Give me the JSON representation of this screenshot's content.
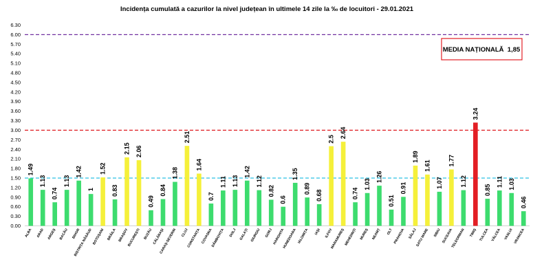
{
  "chart_data": {
    "type": "bar",
    "title": "Incidența cumulată a cazurilor la nivel județean în ultimele 14 zile la ‰ de locuitori - 29.01.2021",
    "ylim": [
      0,
      6.3
    ],
    "yticks": [
      0.0,
      0.3,
      0.6,
      0.9,
      1.2,
      1.5,
      1.8,
      2.1,
      2.4,
      2.7,
      3.0,
      3.3,
      3.6,
      3.9,
      4.2,
      4.5,
      4.8,
      5.1,
      5.4,
      5.7,
      6.0,
      6.3
    ],
    "ytick_labels": [
      "0.00",
      "0.30",
      "0.60",
      "0.90",
      "1.20",
      "1.50",
      "1.80",
      "2.10",
      "2.40",
      "2.70",
      "3.00",
      "3.30",
      "3.60",
      "3.90",
      "4.20",
      "4.50",
      "4.80",
      "5.10",
      "5.40",
      "5.70",
      "6.00",
      "6.30"
    ],
    "categories": [
      "ALBA",
      "ARAD",
      "ARGEȘ",
      "BACĂU",
      "BIHOR",
      "BISTRIȚA NĂSĂUD",
      "BOTOȘANI",
      "BRĂILA",
      "BRAȘOV",
      "BUCUREȘTI",
      "BUZĂU",
      "CĂLĂRAȘI",
      "CARAȘ-SEVERIN",
      "CLUJ",
      "CONSTANȚA",
      "COVASNA",
      "DÂMBOVIȚA",
      "DOLJ",
      "GALAȚI",
      "GIURGIU",
      "GORJ",
      "HARGHITA",
      "HUNEDOARA",
      "IALOMIȚA",
      "IAȘI",
      "ILFOV",
      "MARAMUREȘ",
      "MEHEDINȚI",
      "MUREȘ",
      "NEAMȚ",
      "OLT",
      "PRAHOVA",
      "SĂLAJ",
      "SATU MARE",
      "SIBIU",
      "SUCEAVA",
      "TELEORMAN",
      "TIMIȘ",
      "TULCEA",
      "VÂLCEA",
      "VASLUI",
      "VRANCEA"
    ],
    "values": [
      1.49,
      1.13,
      0.74,
      1.13,
      1.42,
      1,
      1.52,
      0.83,
      2.15,
      2.06,
      0.49,
      0.84,
      1.38,
      2.51,
      1.64,
      0.7,
      1.11,
      1.13,
      1.42,
      1.12,
      0.82,
      0.6,
      1.35,
      0.89,
      0.68,
      2.5,
      2.64,
      0.74,
      1.03,
      1.26,
      0.51,
      0.91,
      1.89,
      1.61,
      1.07,
      1.77,
      1.12,
      3.24,
      0.85,
      1.11,
      1.03,
      0.46
    ],
    "value_labels": [
      "1.49",
      "1.13",
      "0.74",
      "1.13",
      "1.42",
      "1",
      "1.52",
      "0.83",
      "2.15",
      "2.06",
      "0.49",
      "0.84",
      "1.38",
      "2.51",
      "1.64",
      "0.7",
      "1.11",
      "1.13",
      "1.42",
      "1.12",
      "0.82",
      "0.6",
      "1.35",
      "0.89",
      "0.68",
      "2.5",
      "2.64",
      "0.74",
      "1.03",
      "1.26",
      "0.51",
      "0.91",
      "1.89",
      "1.61",
      "1.07",
      "1.77",
      "1.12",
      "3.24",
      "0.85",
      "1.11",
      "1.03",
      "0.46"
    ],
    "thresholds": [
      {
        "value": 6.0,
        "color": "#7030a0"
      },
      {
        "value": 3.0,
        "color": "#e0262a"
      },
      {
        "value": 1.5,
        "color": "#2bc0e4"
      }
    ],
    "band_colors": {
      "low": "#3ddc6e",
      "mid": "#f5f03a",
      "high": "#e31e24"
    },
    "annotation": "MEDIA NAȚIONALĂ  1,85",
    "annotation_border_color": "#e31e24"
  }
}
